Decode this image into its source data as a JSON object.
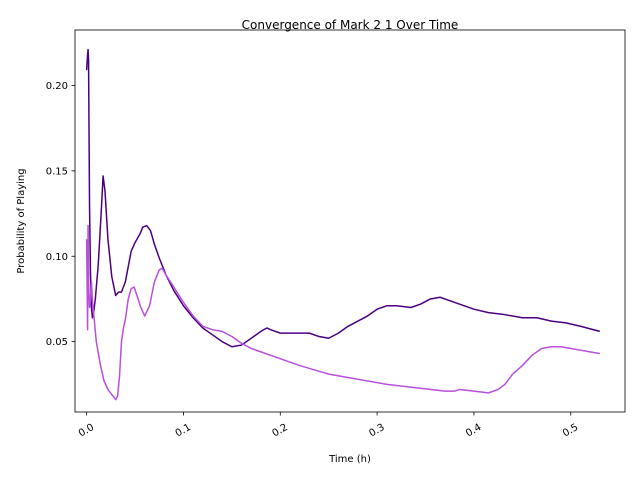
{
  "chart_data": {
    "type": "line",
    "title": "Convergence of Mark 2 1 Over Time",
    "xlabel": "Time (h)",
    "ylabel": "Probability of Playing",
    "xlim": [
      -0.012,
      0.556
    ],
    "ylim": [
      0.0088,
      0.2325
    ],
    "xticks": [
      0.0,
      0.1,
      0.2,
      0.3,
      0.4,
      0.5
    ],
    "xtick_labels": [
      "0.0",
      "0.1",
      "0.2",
      "0.3",
      "0.4",
      "0.5"
    ],
    "yticks": [
      0.05,
      0.1,
      0.15,
      0.2
    ],
    "ytick_labels": [
      "0.05",
      "0.10",
      "0.15",
      "0.20"
    ],
    "grid": false,
    "legend": "none",
    "series": [
      {
        "color": "#4b0082",
        "points": [
          [
            0.0,
            0.209
          ],
          [
            0.001,
            0.218
          ],
          [
            0.0015,
            0.221
          ],
          [
            0.002,
            0.215
          ],
          [
            0.003,
            0.13
          ],
          [
            0.004,
            0.09
          ],
          [
            0.005,
            0.07
          ],
          [
            0.006,
            0.064
          ],
          [
            0.007,
            0.066
          ],
          [
            0.009,
            0.075
          ],
          [
            0.012,
            0.095
          ],
          [
            0.015,
            0.125
          ],
          [
            0.017,
            0.147
          ],
          [
            0.019,
            0.138
          ],
          [
            0.022,
            0.11
          ],
          [
            0.026,
            0.088
          ],
          [
            0.03,
            0.077
          ],
          [
            0.033,
            0.079
          ],
          [
            0.036,
            0.079
          ],
          [
            0.04,
            0.085
          ],
          [
            0.043,
            0.094
          ],
          [
            0.046,
            0.103
          ],
          [
            0.05,
            0.108
          ],
          [
            0.055,
            0.113
          ],
          [
            0.058,
            0.117
          ],
          [
            0.062,
            0.118
          ],
          [
            0.066,
            0.115
          ],
          [
            0.07,
            0.107
          ],
          [
            0.075,
            0.099
          ],
          [
            0.082,
            0.089
          ],
          [
            0.09,
            0.08
          ],
          [
            0.1,
            0.071
          ],
          [
            0.11,
            0.064
          ],
          [
            0.12,
            0.058
          ],
          [
            0.13,
            0.054
          ],
          [
            0.14,
            0.05
          ],
          [
            0.15,
            0.047
          ],
          [
            0.16,
            0.048
          ],
          [
            0.17,
            0.052
          ],
          [
            0.18,
            0.056
          ],
          [
            0.186,
            0.058
          ],
          [
            0.19,
            0.057
          ],
          [
            0.2,
            0.055
          ],
          [
            0.21,
            0.055
          ],
          [
            0.22,
            0.055
          ],
          [
            0.23,
            0.055
          ],
          [
            0.24,
            0.053
          ],
          [
            0.25,
            0.052
          ],
          [
            0.26,
            0.055
          ],
          [
            0.27,
            0.059
          ],
          [
            0.28,
            0.062
          ],
          [
            0.29,
            0.065
          ],
          [
            0.3,
            0.069
          ],
          [
            0.31,
            0.071
          ],
          [
            0.32,
            0.071
          ],
          [
            0.335,
            0.07
          ],
          [
            0.345,
            0.072
          ],
          [
            0.355,
            0.075
          ],
          [
            0.365,
            0.076
          ],
          [
            0.375,
            0.074
          ],
          [
            0.39,
            0.071
          ],
          [
            0.4,
            0.069
          ],
          [
            0.415,
            0.067
          ],
          [
            0.43,
            0.066
          ],
          [
            0.44,
            0.065
          ],
          [
            0.45,
            0.064
          ],
          [
            0.465,
            0.064
          ],
          [
            0.48,
            0.062
          ],
          [
            0.495,
            0.061
          ],
          [
            0.51,
            0.059
          ],
          [
            0.53,
            0.056
          ]
        ]
      },
      {
        "color": "#b94fdb",
        "points": [
          [
            0.0,
            0.11
          ],
          [
            0.001,
            0.057
          ],
          [
            0.0015,
            0.118
          ],
          [
            0.002,
            0.086
          ],
          [
            0.003,
            0.07
          ],
          [
            0.004,
            0.075
          ],
          [
            0.005,
            0.085
          ],
          [
            0.006,
            0.074
          ],
          [
            0.008,
            0.062
          ],
          [
            0.01,
            0.05
          ],
          [
            0.014,
            0.037
          ],
          [
            0.018,
            0.027
          ],
          [
            0.022,
            0.022
          ],
          [
            0.026,
            0.019
          ],
          [
            0.03,
            0.016
          ],
          [
            0.032,
            0.018
          ],
          [
            0.034,
            0.03
          ],
          [
            0.036,
            0.05
          ],
          [
            0.038,
            0.058
          ],
          [
            0.04,
            0.063
          ],
          [
            0.043,
            0.075
          ],
          [
            0.046,
            0.081
          ],
          [
            0.049,
            0.082
          ],
          [
            0.052,
            0.077
          ],
          [
            0.056,
            0.07
          ],
          [
            0.06,
            0.065
          ],
          [
            0.065,
            0.071
          ],
          [
            0.07,
            0.085
          ],
          [
            0.075,
            0.092
          ],
          [
            0.078,
            0.093
          ],
          [
            0.082,
            0.089
          ],
          [
            0.09,
            0.082
          ],
          [
            0.1,
            0.073
          ],
          [
            0.11,
            0.065
          ],
          [
            0.12,
            0.059
          ],
          [
            0.13,
            0.057
          ],
          [
            0.14,
            0.056
          ],
          [
            0.15,
            0.053
          ],
          [
            0.16,
            0.049
          ],
          [
            0.17,
            0.046
          ],
          [
            0.18,
            0.044
          ],
          [
            0.2,
            0.04
          ],
          [
            0.22,
            0.036
          ],
          [
            0.25,
            0.031
          ],
          [
            0.28,
            0.028
          ],
          [
            0.31,
            0.025
          ],
          [
            0.34,
            0.023
          ],
          [
            0.37,
            0.021
          ],
          [
            0.38,
            0.021
          ],
          [
            0.385,
            0.022
          ],
          [
            0.4,
            0.021
          ],
          [
            0.415,
            0.02
          ],
          [
            0.425,
            0.022
          ],
          [
            0.432,
            0.025
          ],
          [
            0.44,
            0.031
          ],
          [
            0.45,
            0.036
          ],
          [
            0.46,
            0.042
          ],
          [
            0.47,
            0.046
          ],
          [
            0.48,
            0.047
          ],
          [
            0.49,
            0.047
          ],
          [
            0.5,
            0.046
          ],
          [
            0.51,
            0.045
          ],
          [
            0.52,
            0.044
          ],
          [
            0.53,
            0.043
          ]
        ]
      }
    ]
  }
}
